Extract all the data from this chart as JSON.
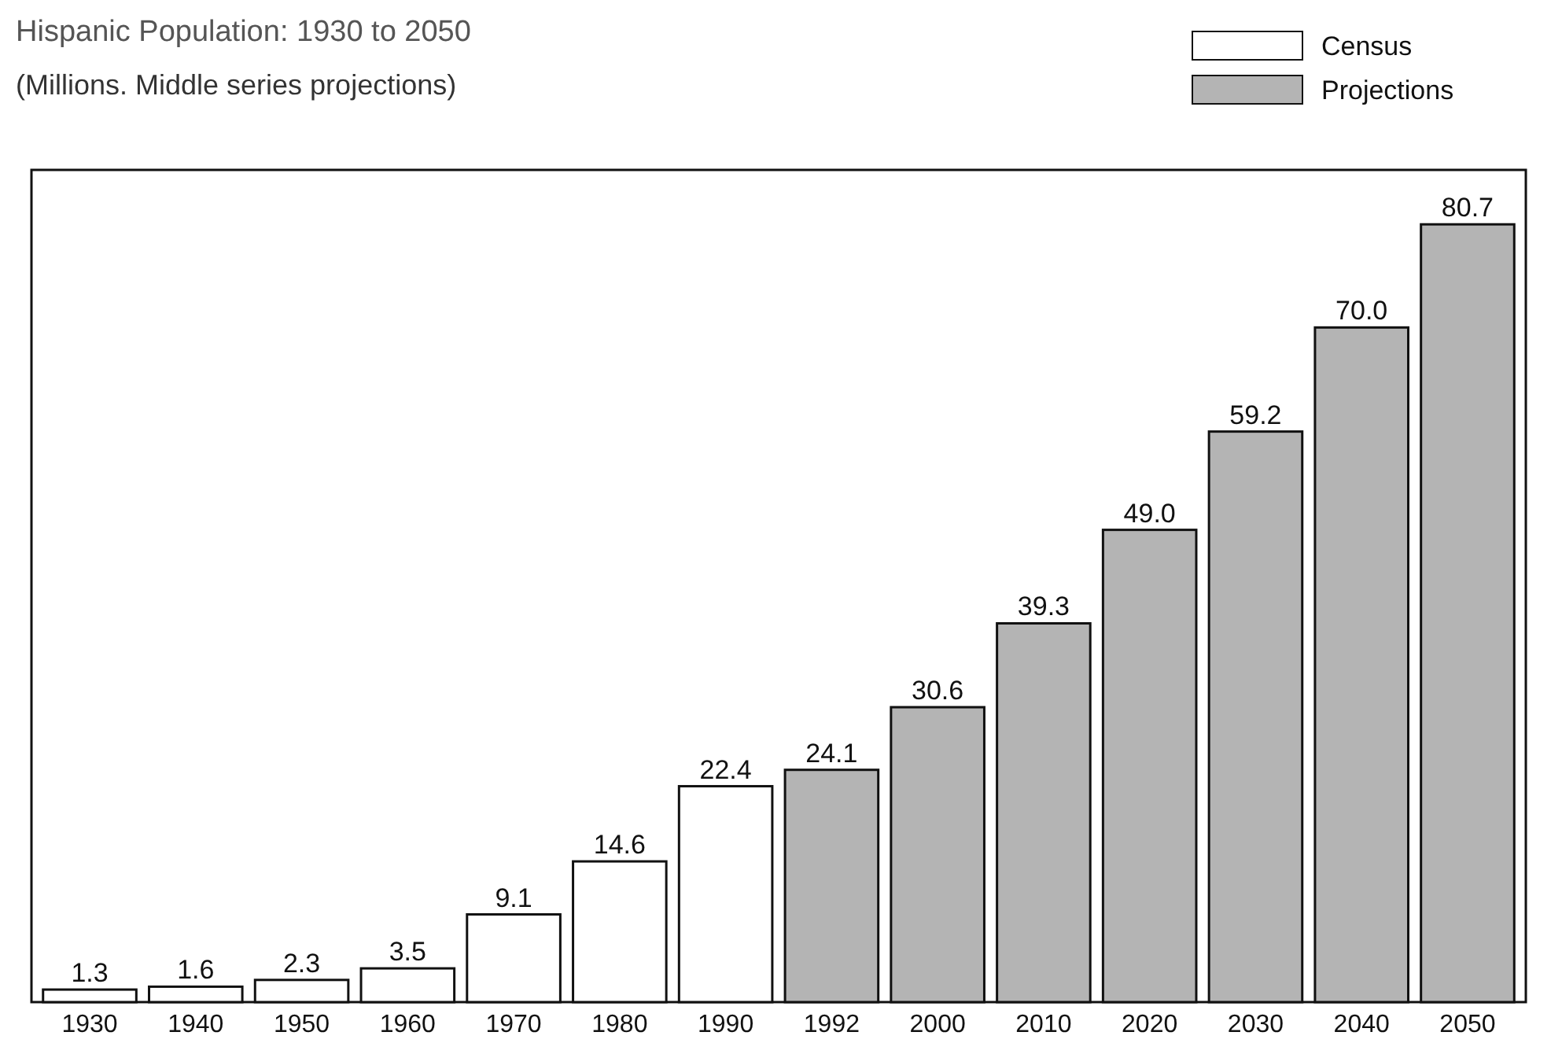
{
  "chart_data": {
    "type": "bar",
    "title": "Hispanic Population: 1930 to 2050",
    "subtitle": "(Millions. Middle series projections)",
    "categories": [
      "1930",
      "1940",
      "1950",
      "1960",
      "1970",
      "1980",
      "1990",
      "1992",
      "2000",
      "2010",
      "2020",
      "2030",
      "2040",
      "2050"
    ],
    "stacked": true,
    "legend": "top right",
    "grid": false,
    "series": [
      {
        "name": "Census",
        "color": "#ffffff",
        "values": [
          1.3,
          1.6,
          2.3,
          3.5,
          9.1,
          14.6,
          22.4,
          null,
          null,
          null,
          null,
          null,
          null,
          null
        ],
        "value_labels": [
          "1.3",
          "1.6",
          "2.3",
          "3.5",
          "9.1",
          "14.6",
          "22.4",
          null,
          null,
          null,
          null,
          null,
          null,
          null
        ]
      },
      {
        "name": "Projections",
        "color": "#b4b4b4",
        "values": [
          null,
          null,
          null,
          null,
          null,
          null,
          null,
          24.1,
          30.6,
          39.3,
          49.0,
          59.2,
          70.0,
          80.7
        ],
        "value_labels": [
          null,
          null,
          null,
          null,
          null,
          null,
          null,
          "24.1",
          "30.6",
          "39.3",
          "49.0",
          "59.2",
          "70.0",
          "80.7"
        ]
      }
    ]
  }
}
